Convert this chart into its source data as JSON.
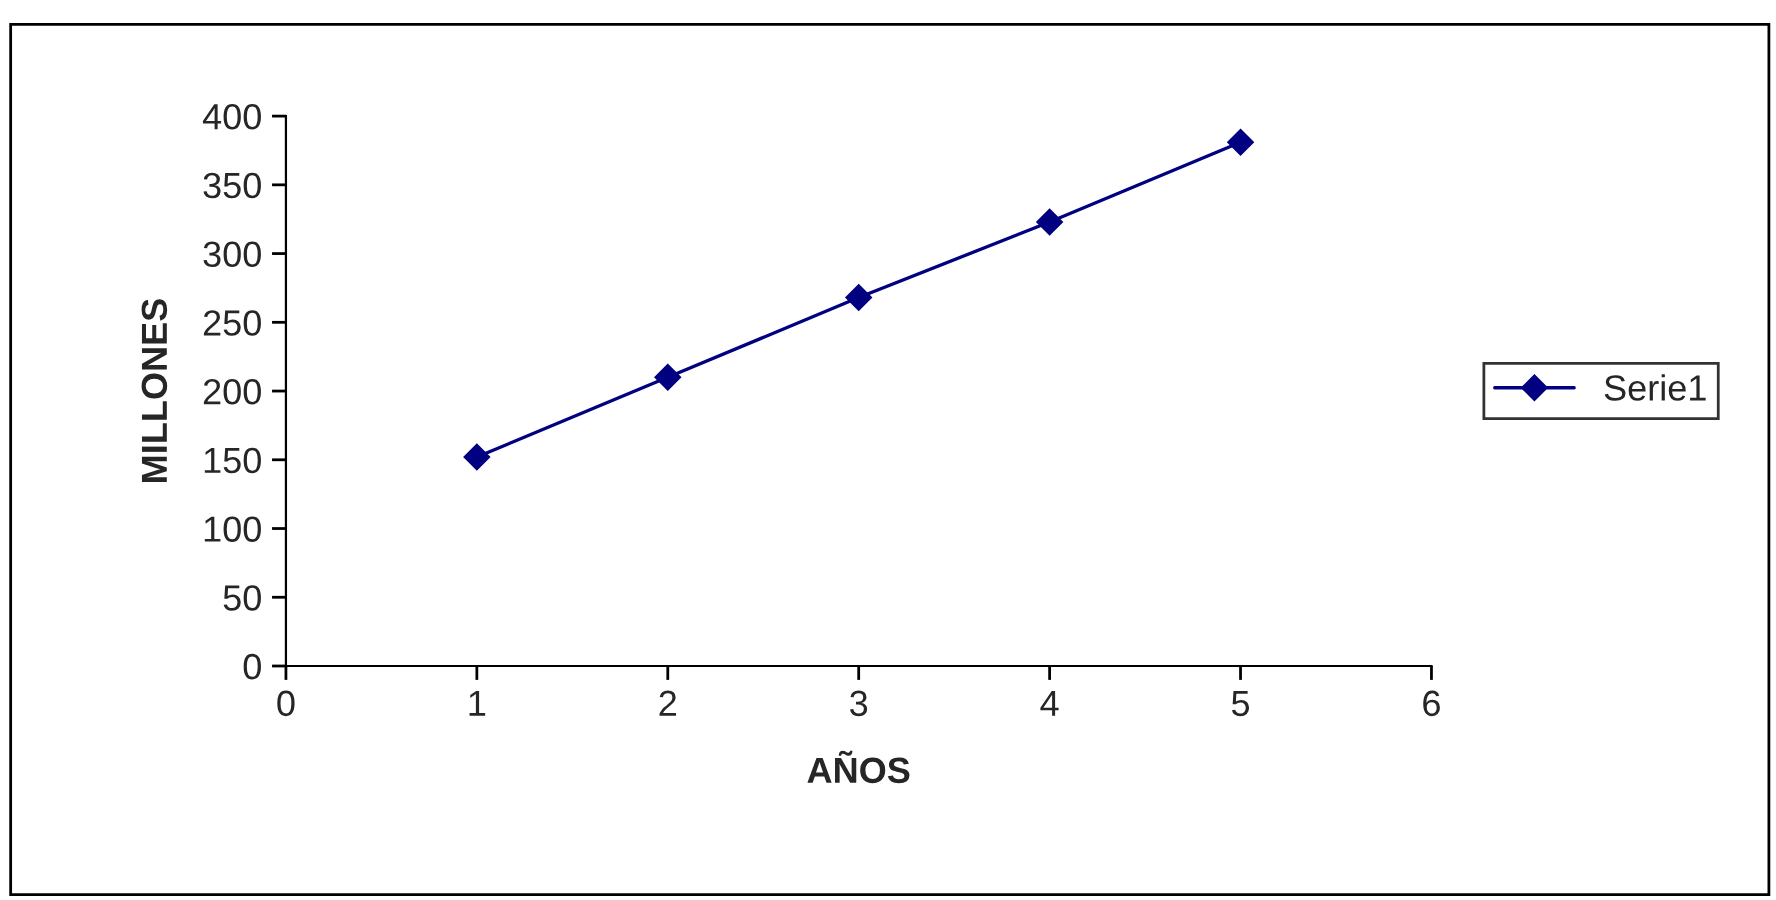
{
  "chart_data": {
    "type": "line",
    "xlabel": "AÑOS",
    "ylabel": "MILLONES",
    "x": [
      1,
      2,
      3,
      4,
      5
    ],
    "series": [
      {
        "name": "Serie1",
        "color": "#000080",
        "values": [
          152,
          210,
          268,
          323,
          381
        ]
      }
    ],
    "xlim": [
      0,
      6
    ],
    "xticks": [
      0,
      1,
      2,
      3,
      4,
      5,
      6
    ],
    "ylim": [
      0,
      400
    ],
    "yticks": [
      0,
      50,
      100,
      150,
      200,
      250,
      300,
      350,
      400
    ],
    "marker": "diamond",
    "line_style": "solid",
    "legend": "right",
    "grid": false
  }
}
